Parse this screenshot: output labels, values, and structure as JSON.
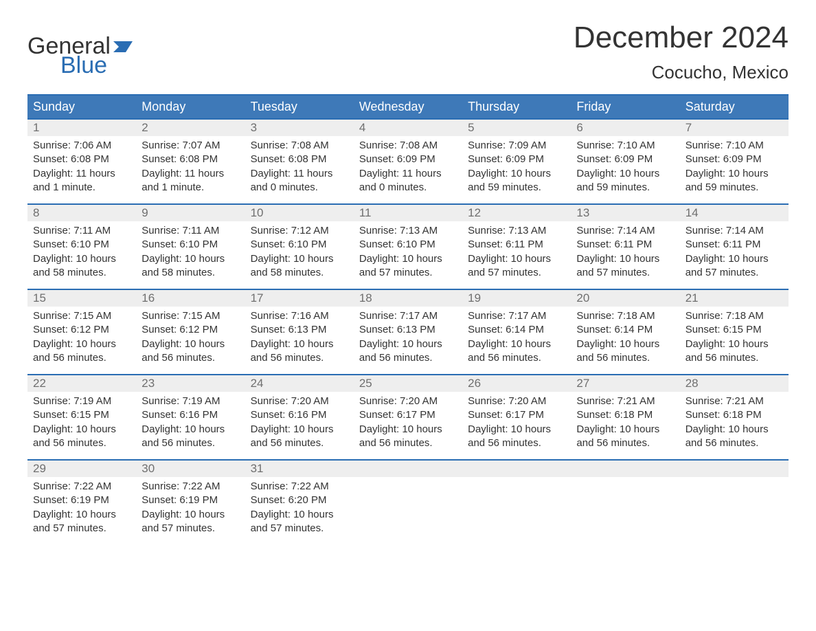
{
  "brand": {
    "word1": "General",
    "word2": "Blue",
    "word1_color": "#333333",
    "word2_color": "#2a6db3",
    "flag_color": "#2a6db3"
  },
  "title": "December 2024",
  "subtitle": "Cocucho, Mexico",
  "colors": {
    "header_bg": "#3e79b8",
    "header_border": "#2a6db3",
    "header_text": "#ffffff",
    "daynum_bg": "#eeeeee",
    "daynum_text": "#6f6f6f",
    "body_text": "#333333",
    "background": "#ffffff"
  },
  "day_headers": [
    "Sunday",
    "Monday",
    "Tuesday",
    "Wednesday",
    "Thursday",
    "Friday",
    "Saturday"
  ],
  "weeks": [
    [
      {
        "n": "1",
        "sunrise": "Sunrise: 7:06 AM",
        "sunset": "Sunset: 6:08 PM",
        "daylight": "Daylight: 11 hours and 1 minute."
      },
      {
        "n": "2",
        "sunrise": "Sunrise: 7:07 AM",
        "sunset": "Sunset: 6:08 PM",
        "daylight": "Daylight: 11 hours and 1 minute."
      },
      {
        "n": "3",
        "sunrise": "Sunrise: 7:08 AM",
        "sunset": "Sunset: 6:08 PM",
        "daylight": "Daylight: 11 hours and 0 minutes."
      },
      {
        "n": "4",
        "sunrise": "Sunrise: 7:08 AM",
        "sunset": "Sunset: 6:09 PM",
        "daylight": "Daylight: 11 hours and 0 minutes."
      },
      {
        "n": "5",
        "sunrise": "Sunrise: 7:09 AM",
        "sunset": "Sunset: 6:09 PM",
        "daylight": "Daylight: 10 hours and 59 minutes."
      },
      {
        "n": "6",
        "sunrise": "Sunrise: 7:10 AM",
        "sunset": "Sunset: 6:09 PM",
        "daylight": "Daylight: 10 hours and 59 minutes."
      },
      {
        "n": "7",
        "sunrise": "Sunrise: 7:10 AM",
        "sunset": "Sunset: 6:09 PM",
        "daylight": "Daylight: 10 hours and 59 minutes."
      }
    ],
    [
      {
        "n": "8",
        "sunrise": "Sunrise: 7:11 AM",
        "sunset": "Sunset: 6:10 PM",
        "daylight": "Daylight: 10 hours and 58 minutes."
      },
      {
        "n": "9",
        "sunrise": "Sunrise: 7:11 AM",
        "sunset": "Sunset: 6:10 PM",
        "daylight": "Daylight: 10 hours and 58 minutes."
      },
      {
        "n": "10",
        "sunrise": "Sunrise: 7:12 AM",
        "sunset": "Sunset: 6:10 PM",
        "daylight": "Daylight: 10 hours and 58 minutes."
      },
      {
        "n": "11",
        "sunrise": "Sunrise: 7:13 AM",
        "sunset": "Sunset: 6:10 PM",
        "daylight": "Daylight: 10 hours and 57 minutes."
      },
      {
        "n": "12",
        "sunrise": "Sunrise: 7:13 AM",
        "sunset": "Sunset: 6:11 PM",
        "daylight": "Daylight: 10 hours and 57 minutes."
      },
      {
        "n": "13",
        "sunrise": "Sunrise: 7:14 AM",
        "sunset": "Sunset: 6:11 PM",
        "daylight": "Daylight: 10 hours and 57 minutes."
      },
      {
        "n": "14",
        "sunrise": "Sunrise: 7:14 AM",
        "sunset": "Sunset: 6:11 PM",
        "daylight": "Daylight: 10 hours and 57 minutes."
      }
    ],
    [
      {
        "n": "15",
        "sunrise": "Sunrise: 7:15 AM",
        "sunset": "Sunset: 6:12 PM",
        "daylight": "Daylight: 10 hours and 56 minutes."
      },
      {
        "n": "16",
        "sunrise": "Sunrise: 7:15 AM",
        "sunset": "Sunset: 6:12 PM",
        "daylight": "Daylight: 10 hours and 56 minutes."
      },
      {
        "n": "17",
        "sunrise": "Sunrise: 7:16 AM",
        "sunset": "Sunset: 6:13 PM",
        "daylight": "Daylight: 10 hours and 56 minutes."
      },
      {
        "n": "18",
        "sunrise": "Sunrise: 7:17 AM",
        "sunset": "Sunset: 6:13 PM",
        "daylight": "Daylight: 10 hours and 56 minutes."
      },
      {
        "n": "19",
        "sunrise": "Sunrise: 7:17 AM",
        "sunset": "Sunset: 6:14 PM",
        "daylight": "Daylight: 10 hours and 56 minutes."
      },
      {
        "n": "20",
        "sunrise": "Sunrise: 7:18 AM",
        "sunset": "Sunset: 6:14 PM",
        "daylight": "Daylight: 10 hours and 56 minutes."
      },
      {
        "n": "21",
        "sunrise": "Sunrise: 7:18 AM",
        "sunset": "Sunset: 6:15 PM",
        "daylight": "Daylight: 10 hours and 56 minutes."
      }
    ],
    [
      {
        "n": "22",
        "sunrise": "Sunrise: 7:19 AM",
        "sunset": "Sunset: 6:15 PM",
        "daylight": "Daylight: 10 hours and 56 minutes."
      },
      {
        "n": "23",
        "sunrise": "Sunrise: 7:19 AM",
        "sunset": "Sunset: 6:16 PM",
        "daylight": "Daylight: 10 hours and 56 minutes."
      },
      {
        "n": "24",
        "sunrise": "Sunrise: 7:20 AM",
        "sunset": "Sunset: 6:16 PM",
        "daylight": "Daylight: 10 hours and 56 minutes."
      },
      {
        "n": "25",
        "sunrise": "Sunrise: 7:20 AM",
        "sunset": "Sunset: 6:17 PM",
        "daylight": "Daylight: 10 hours and 56 minutes."
      },
      {
        "n": "26",
        "sunrise": "Sunrise: 7:20 AM",
        "sunset": "Sunset: 6:17 PM",
        "daylight": "Daylight: 10 hours and 56 minutes."
      },
      {
        "n": "27",
        "sunrise": "Sunrise: 7:21 AM",
        "sunset": "Sunset: 6:18 PM",
        "daylight": "Daylight: 10 hours and 56 minutes."
      },
      {
        "n": "28",
        "sunrise": "Sunrise: 7:21 AM",
        "sunset": "Sunset: 6:18 PM",
        "daylight": "Daylight: 10 hours and 56 minutes."
      }
    ],
    [
      {
        "n": "29",
        "sunrise": "Sunrise: 7:22 AM",
        "sunset": "Sunset: 6:19 PM",
        "daylight": "Daylight: 10 hours and 57 minutes."
      },
      {
        "n": "30",
        "sunrise": "Sunrise: 7:22 AM",
        "sunset": "Sunset: 6:19 PM",
        "daylight": "Daylight: 10 hours and 57 minutes."
      },
      {
        "n": "31",
        "sunrise": "Sunrise: 7:22 AM",
        "sunset": "Sunset: 6:20 PM",
        "daylight": "Daylight: 10 hours and 57 minutes."
      },
      null,
      null,
      null,
      null
    ]
  ]
}
